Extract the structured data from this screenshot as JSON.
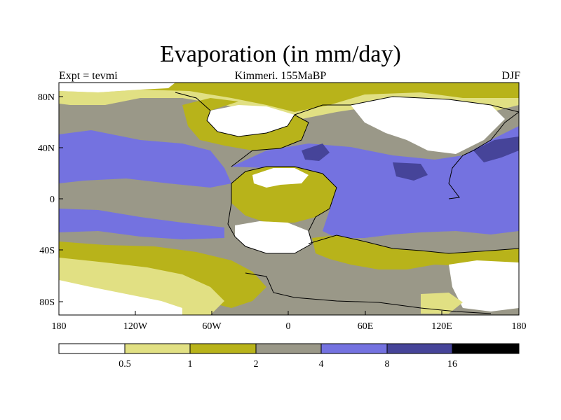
{
  "title": "Evaporation (in mm/day)",
  "subtitle_left": "Expt = tevmi",
  "subtitle_center": "Kimmeri. 155MaBP",
  "subtitle_right": "DJF",
  "map": {
    "x_ticks": [
      "180",
      "120W",
      "60W",
      "0",
      "60E",
      "120E",
      "180"
    ],
    "y_ticks": [
      "80N",
      "40N",
      "0",
      "40S",
      "80S"
    ]
  },
  "colorbar": {
    "colors": [
      "#ffffff",
      "#e1e083",
      "#b8b31a",
      "#9a9888",
      "#7472e0",
      "#464499",
      "#000000"
    ],
    "labels": [
      "0.5",
      "1",
      "2",
      "4",
      "8",
      "16"
    ]
  }
}
